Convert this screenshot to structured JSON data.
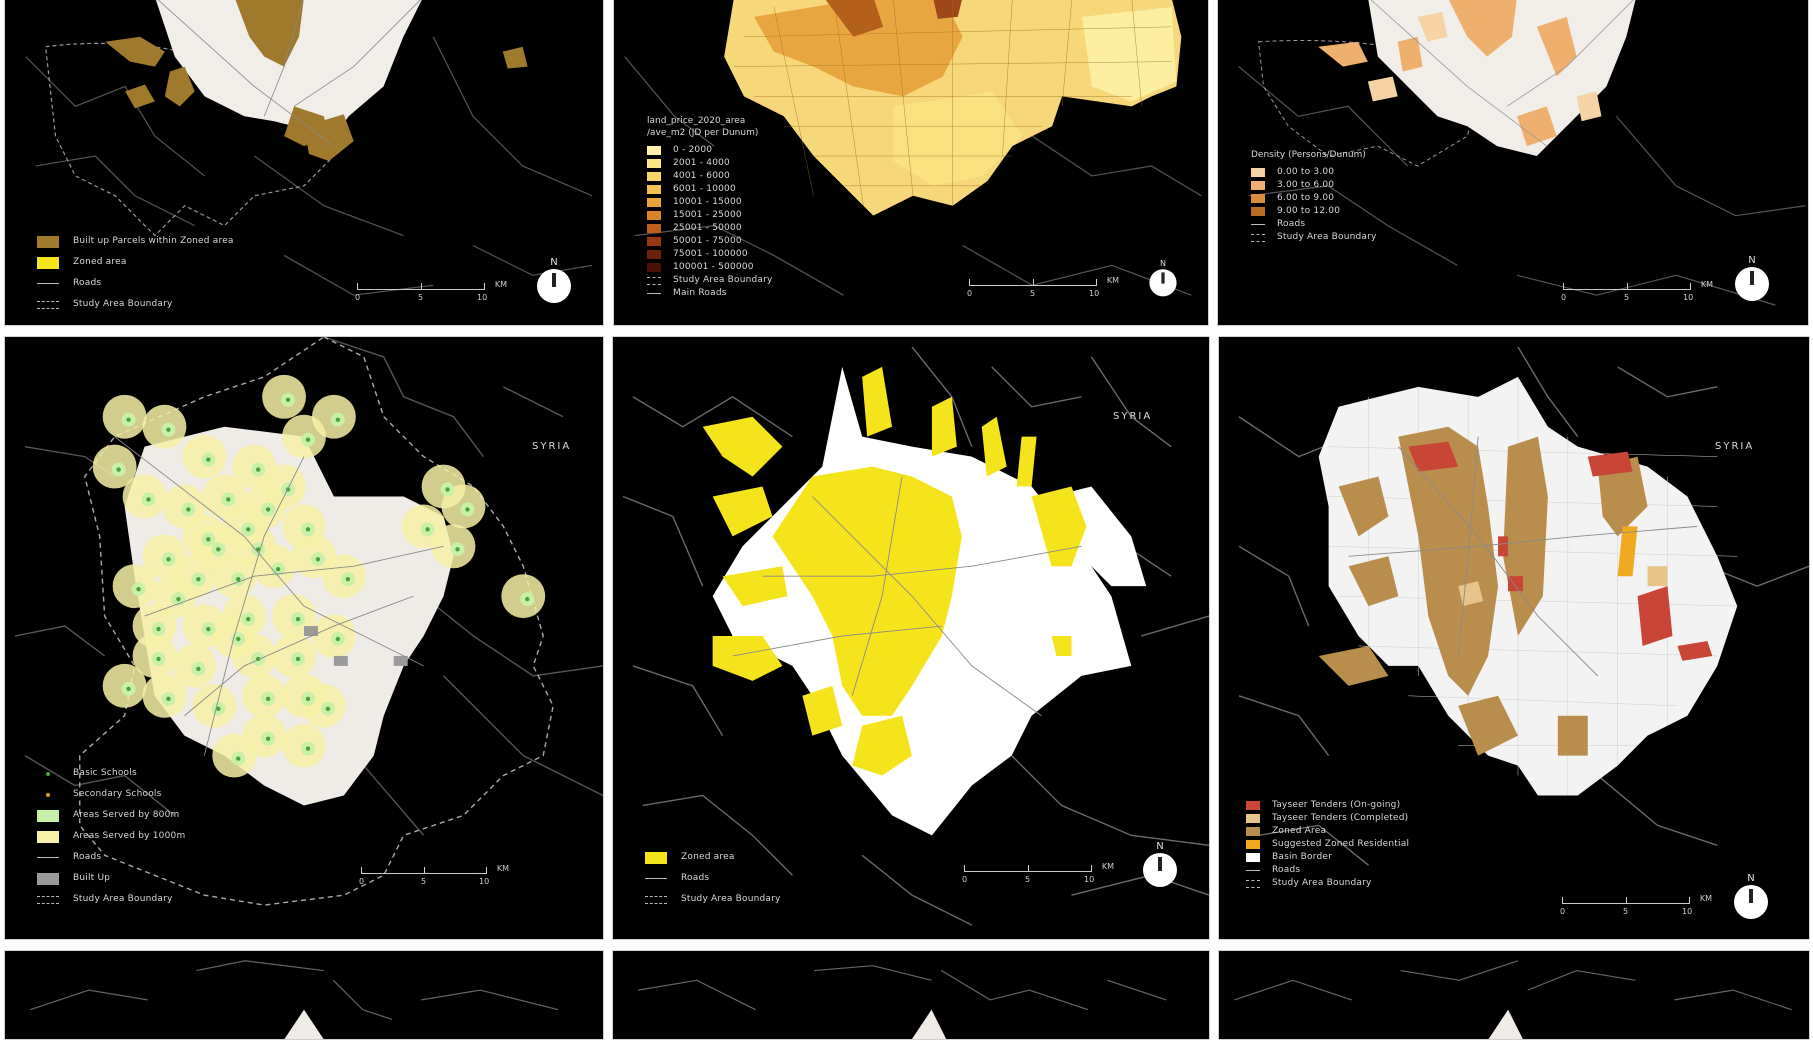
{
  "colors": {
    "built_up": "#a07a2c",
    "zoned": "#f5e41c",
    "study_fill": "#efece7",
    "buffer_800": "#c9f0a8",
    "buffer_1000": "#f7f0a6",
    "school_basic": "#4aa23a",
    "school_secondary": "#e19a2a",
    "tenders_ongoing": "#c94536",
    "tenders_completed": "#e6c48a",
    "zoned_brown": "#b98d4c",
    "suggested": "#f1a920",
    "grey_builtup": "#9a9a9a"
  },
  "common": {
    "north": "N",
    "scale_ticks": [
      "0",
      "5",
      "10"
    ],
    "scale_unit": "KM",
    "syria_label": "SYRIA"
  },
  "panels": {
    "p1": {
      "legend": [
        {
          "type": "swatch",
          "color": "#a07a2c",
          "label": "Built up Parcels within Zoned area"
        },
        {
          "type": "swatch",
          "color": "#f5e41c",
          "label": "Zoned area"
        },
        {
          "type": "line",
          "label": "Roads"
        },
        {
          "type": "dashed",
          "label": "Study Area Boundary"
        }
      ]
    },
    "p2": {
      "legend_title_1": "land_price_2020_area",
      "legend_title_2": "/ave_m2 (JD per Dunum)",
      "legend": [
        {
          "type": "swatch",
          "color": "#fff2a8",
          "label": "0 - 2000"
        },
        {
          "type": "swatch",
          "color": "#fce585",
          "label": "2001 - 4000"
        },
        {
          "type": "swatch",
          "color": "#f9d56a",
          "label": "4001 - 6000"
        },
        {
          "type": "swatch",
          "color": "#f4c052",
          "label": "6001 - 10000"
        },
        {
          "type": "swatch",
          "color": "#eaa23a",
          "label": "10001 - 15000"
        },
        {
          "type": "swatch",
          "color": "#d98226",
          "label": "15001 - 25000"
        },
        {
          "type": "swatch",
          "color": "#bd5e18",
          "label": "25001 - 50000"
        },
        {
          "type": "swatch",
          "color": "#963812",
          "label": "50001 - 75000"
        },
        {
          "type": "swatch",
          "color": "#6e200c",
          "label": "75001 - 100000"
        },
        {
          "type": "swatch",
          "color": "#4a1006",
          "label": "100001 - 500000"
        },
        {
          "type": "dashed",
          "label": "Study Area Boundary"
        },
        {
          "type": "line",
          "label": "Main Roads"
        }
      ]
    },
    "p3": {
      "legend_title": "Density (Persons/Dunum)",
      "legend": [
        {
          "type": "swatch",
          "color": "#f6d3a4",
          "label": "0.00 to 3.00"
        },
        {
          "type": "swatch",
          "color": "#eeb06c",
          "label": "3.00 to 6.00"
        },
        {
          "type": "swatch",
          "color": "#d88c3c",
          "label": "6.00 to 9.00"
        },
        {
          "type": "swatch",
          "color": "#b86c22",
          "label": "9.00 to 12.00"
        },
        {
          "type": "line",
          "label": "Roads"
        },
        {
          "type": "dashed",
          "label": "Study Area Boundary"
        }
      ]
    },
    "p4": {
      "legend": [
        {
          "type": "point",
          "color": "#4aa23a",
          "label": "Basic Schools"
        },
        {
          "type": "point",
          "color": "#e19a2a",
          "label": "Secondary Schools"
        },
        {
          "type": "swatch",
          "color": "#c9f0a8",
          "label": "Areas Served by 800m"
        },
        {
          "type": "swatch",
          "color": "#f7f0a6",
          "label": "Areas Served by 1000m"
        },
        {
          "type": "line",
          "label": "Roads"
        },
        {
          "type": "swatch",
          "color": "#9a9a9a",
          "label": "Built Up"
        },
        {
          "type": "dashed",
          "label": "Study Area Boundary"
        }
      ]
    },
    "p5": {
      "legend": [
        {
          "type": "swatch",
          "color": "#f5e41c",
          "label": "Zoned area"
        },
        {
          "type": "line",
          "label": "Roads"
        },
        {
          "type": "dashed",
          "label": "Study Area Boundary"
        }
      ]
    },
    "p6": {
      "legend": [
        {
          "type": "swatch",
          "color": "#c94536",
          "label": "Tayseer Tenders (On-going)"
        },
        {
          "type": "swatch",
          "color": "#e6c48a",
          "label": "Tayseer Tenders (Completed)"
        },
        {
          "type": "swatch",
          "color": "#b98d4c",
          "label": "Zoned Area"
        },
        {
          "type": "swatch",
          "color": "#f1a920",
          "label": "Suggested Zoned Residential"
        },
        {
          "type": "swatch",
          "color": "#ffffff",
          "label": "Basin Border"
        },
        {
          "type": "line",
          "label": "Roads"
        },
        {
          "type": "dashed",
          "label": "Study Area Boundary"
        }
      ]
    }
  }
}
